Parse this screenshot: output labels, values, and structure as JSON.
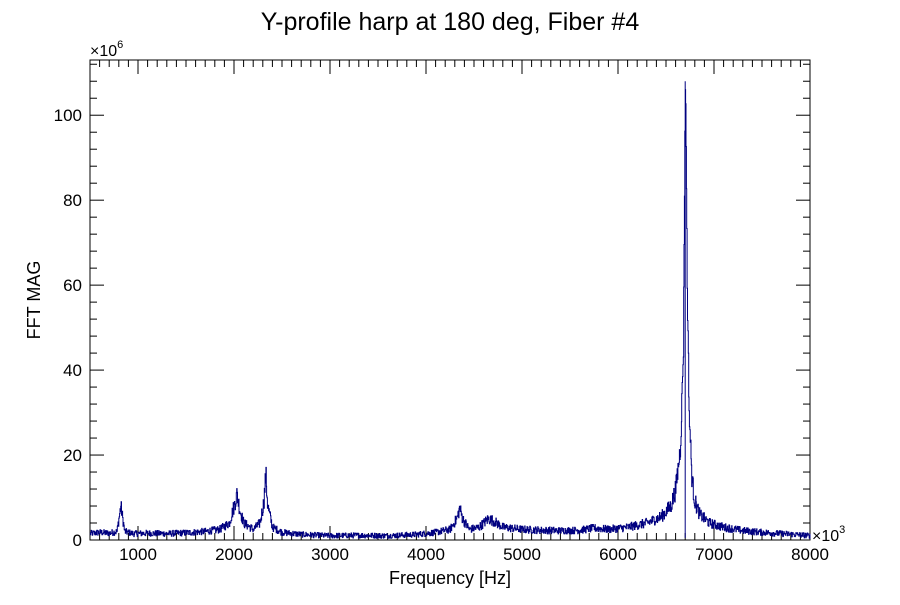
{
  "chart_data": {
    "type": "line",
    "title": "Y-profile harp at 180 deg, Fiber #4",
    "xlabel": "Frequency [Hz]",
    "ylabel": "FFT MAG",
    "x_multiplier": "×10",
    "x_multiplier_exp": "3",
    "y_multiplier": "×10",
    "y_multiplier_exp": "6",
    "xlim": [
      500,
      8000
    ],
    "ylim": [
      0,
      113
    ],
    "x_ticks": [
      1000,
      2000,
      3000,
      4000,
      5000,
      6000,
      7000,
      8000
    ],
    "y_ticks": [
      0,
      20,
      40,
      60,
      80,
      100
    ],
    "x_tick_labels": [
      "1000",
      "2000",
      "3000",
      "4000",
      "5000",
      "6000",
      "7000",
      "8000"
    ],
    "y_tick_labels": [
      "0",
      "20",
      "40",
      "60",
      "80",
      "100"
    ],
    "grid": false,
    "line_color": "#000080",
    "series": [
      {
        "x": [
          500,
          600,
          700,
          780,
          820,
          860,
          950,
          1100,
          1300,
          1500,
          1700,
          1850,
          1950,
          2000,
          2030,
          2060,
          2100,
          2200,
          2270,
          2310,
          2330,
          2350,
          2400,
          2500,
          2700,
          3000,
          3300,
          3600,
          3900,
          4100,
          4250,
          4320,
          4350,
          4380,
          4450,
          4550,
          4650,
          4700,
          4800,
          5000,
          5200,
          5400,
          5600,
          5750,
          5900,
          6100,
          6300,
          6450,
          6550,
          6600,
          6650,
          6680,
          6700,
          6710,
          6720,
          6740,
          6770,
          6800,
          6850,
          6950,
          7100,
          7300,
          7500,
          7700,
          7900,
          8000
        ],
        "y": [
          1.5,
          1.8,
          1.6,
          2.0,
          8.0,
          2.0,
          1.5,
          1.6,
          1.5,
          1.7,
          2.0,
          2.5,
          4.0,
          8.0,
          10.8,
          7.0,
          4.0,
          2.5,
          4.0,
          9.0,
          15.5,
          8.0,
          3.0,
          1.8,
          1.3,
          1.0,
          1.1,
          1.0,
          1.3,
          1.8,
          2.5,
          5.0,
          7.5,
          5.0,
          2.5,
          3.0,
          5.0,
          4.5,
          3.0,
          2.5,
          2.3,
          2.2,
          2.3,
          2.8,
          2.5,
          3.0,
          4.0,
          5.5,
          8.0,
          12.0,
          22.0,
          45.0,
          108.0,
          90.0,
          60.0,
          30.0,
          14.0,
          9.0,
          6.0,
          4.0,
          3.0,
          2.2,
          1.8,
          1.5,
          1.2,
          1.0
        ]
      }
    ]
  }
}
